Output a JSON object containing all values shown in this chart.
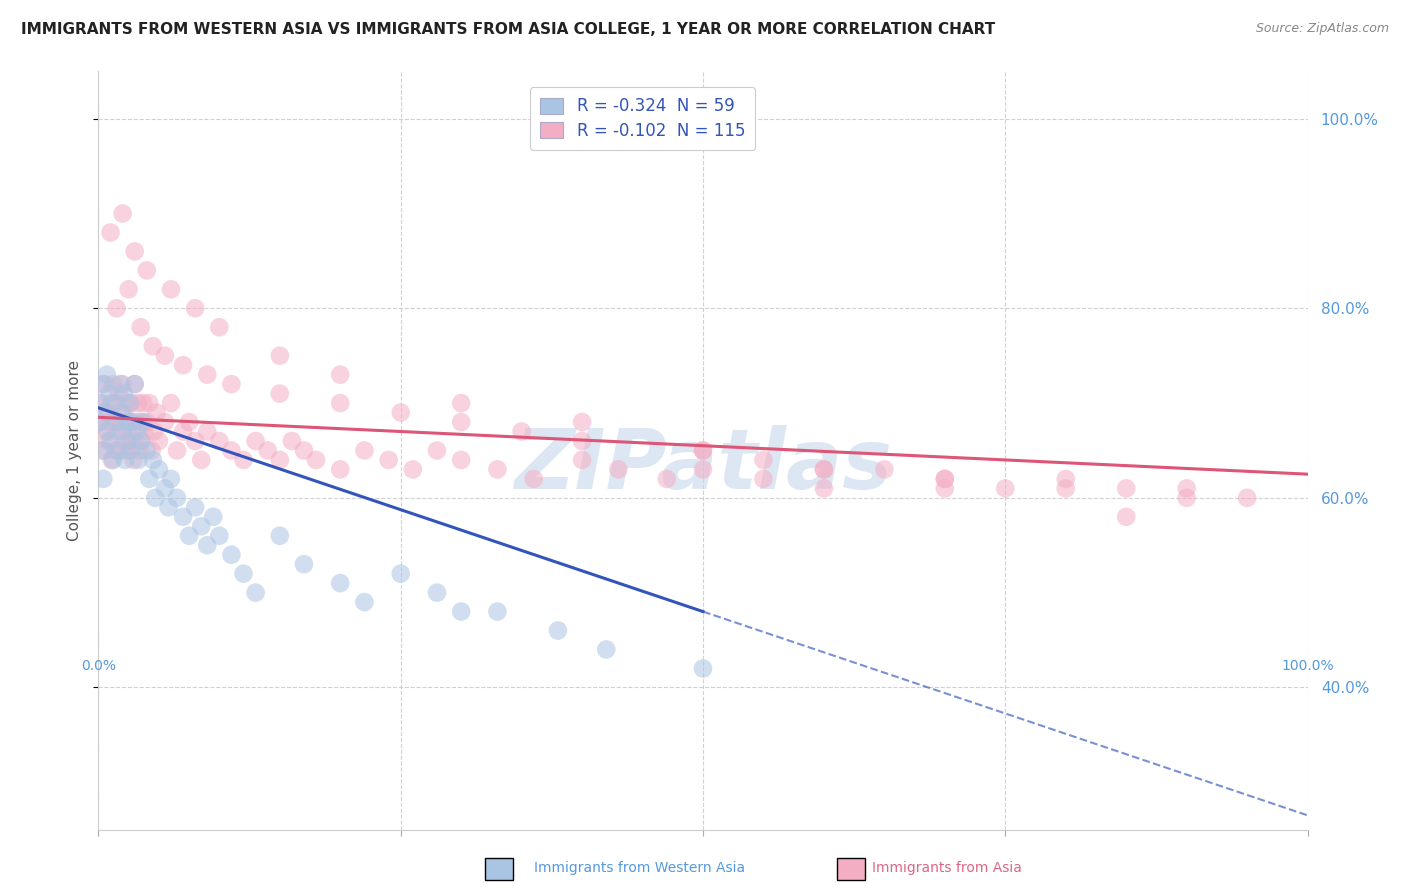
{
  "title": "IMMIGRANTS FROM WESTERN ASIA VS IMMIGRANTS FROM ASIA COLLEGE, 1 YEAR OR MORE CORRELATION CHART",
  "source": "Source: ZipAtlas.com",
  "ylabel": "College, 1 year or more",
  "watermark": "ZIPatlas",
  "blue_color": "#aac4e4",
  "pink_color": "#f4aec4",
  "blue_line_color": "#3355bb",
  "pink_line_color": "#dd5577",
  "blue_scatter": {
    "x": [
      0.001,
      0.002,
      0.003,
      0.004,
      0.005,
      0.006,
      0.007,
      0.008,
      0.009,
      0.01,
      0.012,
      0.013,
      0.015,
      0.016,
      0.018,
      0.019,
      0.02,
      0.021,
      0.022,
      0.024,
      0.025,
      0.026,
      0.027,
      0.028,
      0.03,
      0.032,
      0.033,
      0.035,
      0.037,
      0.04,
      0.042,
      0.045,
      0.047,
      0.05,
      0.055,
      0.058,
      0.06,
      0.065,
      0.07,
      0.075,
      0.08,
      0.085,
      0.09,
      0.095,
      0.1,
      0.11,
      0.12,
      0.13,
      0.15,
      0.17,
      0.2,
      0.22,
      0.25,
      0.28,
      0.3,
      0.33,
      0.38,
      0.42,
      0.5
    ],
    "y": [
      0.68,
      0.7,
      0.65,
      0.62,
      0.72,
      0.69,
      0.73,
      0.67,
      0.71,
      0.66,
      0.64,
      0.7,
      0.68,
      0.65,
      0.72,
      0.69,
      0.67,
      0.71,
      0.64,
      0.68,
      0.66,
      0.7,
      0.65,
      0.68,
      0.72,
      0.67,
      0.64,
      0.66,
      0.68,
      0.65,
      0.62,
      0.64,
      0.6,
      0.63,
      0.61,
      0.59,
      0.62,
      0.6,
      0.58,
      0.56,
      0.59,
      0.57,
      0.55,
      0.58,
      0.56,
      0.54,
      0.52,
      0.5,
      0.56,
      0.53,
      0.51,
      0.49,
      0.52,
      0.5,
      0.48,
      0.48,
      0.46,
      0.44,
      0.42
    ]
  },
  "pink_scatter": {
    "x": [
      0.001,
      0.002,
      0.003,
      0.005,
      0.006,
      0.007,
      0.008,
      0.009,
      0.01,
      0.011,
      0.012,
      0.013,
      0.014,
      0.015,
      0.016,
      0.017,
      0.018,
      0.019,
      0.02,
      0.021,
      0.022,
      0.023,
      0.024,
      0.025,
      0.026,
      0.027,
      0.028,
      0.029,
      0.03,
      0.031,
      0.033,
      0.034,
      0.035,
      0.036,
      0.037,
      0.038,
      0.04,
      0.042,
      0.044,
      0.046,
      0.048,
      0.05,
      0.055,
      0.06,
      0.065,
      0.07,
      0.075,
      0.08,
      0.085,
      0.09,
      0.1,
      0.11,
      0.12,
      0.13,
      0.14,
      0.15,
      0.16,
      0.17,
      0.18,
      0.2,
      0.22,
      0.24,
      0.26,
      0.28,
      0.3,
      0.33,
      0.36,
      0.4,
      0.43,
      0.47,
      0.5,
      0.55,
      0.6,
      0.65,
      0.7,
      0.75,
      0.8,
      0.85,
      0.9,
      0.95,
      0.015,
      0.025,
      0.035,
      0.045,
      0.055,
      0.07,
      0.09,
      0.11,
      0.15,
      0.2,
      0.25,
      0.3,
      0.35,
      0.4,
      0.5,
      0.55,
      0.6,
      0.7,
      0.8,
      0.9,
      0.01,
      0.02,
      0.03,
      0.04,
      0.06,
      0.08,
      0.1,
      0.15,
      0.2,
      0.3,
      0.4,
      0.5,
      0.6,
      0.7,
      0.85
    ],
    "y": [
      0.68,
      0.7,
      0.72,
      0.65,
      0.67,
      0.69,
      0.66,
      0.68,
      0.7,
      0.64,
      0.72,
      0.68,
      0.65,
      0.7,
      0.67,
      0.71,
      0.68,
      0.65,
      0.72,
      0.69,
      0.66,
      0.7,
      0.67,
      0.65,
      0.68,
      0.7,
      0.66,
      0.64,
      0.72,
      0.68,
      0.7,
      0.65,
      0.68,
      0.66,
      0.7,
      0.67,
      0.68,
      0.7,
      0.65,
      0.67,
      0.69,
      0.66,
      0.68,
      0.7,
      0.65,
      0.67,
      0.68,
      0.66,
      0.64,
      0.67,
      0.66,
      0.65,
      0.64,
      0.66,
      0.65,
      0.64,
      0.66,
      0.65,
      0.64,
      0.63,
      0.65,
      0.64,
      0.63,
      0.65,
      0.64,
      0.63,
      0.62,
      0.64,
      0.63,
      0.62,
      0.63,
      0.62,
      0.61,
      0.63,
      0.62,
      0.61,
      0.62,
      0.61,
      0.61,
      0.6,
      0.8,
      0.82,
      0.78,
      0.76,
      0.75,
      0.74,
      0.73,
      0.72,
      0.71,
      0.7,
      0.69,
      0.68,
      0.67,
      0.66,
      0.65,
      0.64,
      0.63,
      0.62,
      0.61,
      0.6,
      0.88,
      0.9,
      0.86,
      0.84,
      0.82,
      0.8,
      0.78,
      0.75,
      0.73,
      0.7,
      0.68,
      0.65,
      0.63,
      0.61,
      0.58
    ]
  },
  "xlim": [
    0.0,
    1.0
  ],
  "ylim": [
    0.25,
    1.05
  ],
  "yticks": [
    0.4,
    0.6,
    0.8,
    1.0
  ],
  "xtick_labels": [
    "0.0%",
    "100.0%"
  ],
  "grid_color": "#cccccc",
  "background_color": "#ffffff",
  "title_fontsize": 11,
  "axis_label_fontsize": 11,
  "tick_fontsize": 10,
  "watermark_color": "#c5d8ec",
  "watermark_fontsize": 60,
  "blue_R": -0.324,
  "blue_N": 59,
  "pink_R": -0.102,
  "pink_N": 115
}
